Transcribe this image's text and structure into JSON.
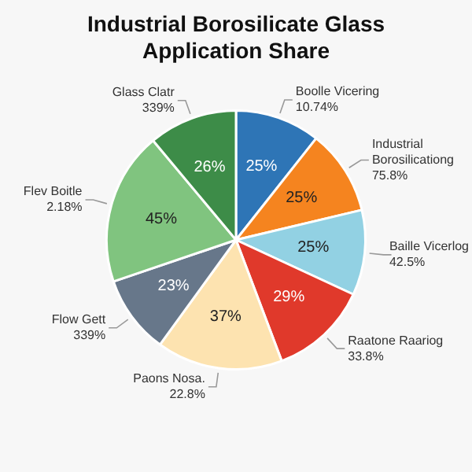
{
  "chart_data": {
    "type": "pie",
    "title": "Industrial Borosilicate Glass Application Share",
    "categories": [
      "Boolle Vicering\n10.74%",
      "Industrial\nBorosilicationg\n75.8%",
      "Baille Vicerlog\n42.5%",
      "Raatone Raariog\n33.8%",
      "Paons Nosa.\n22.8%",
      "Flow Gett\n339%",
      "Flev Boitle\n2.18%",
      "Glass Clatr\n339%"
    ],
    "values": [
      25,
      25,
      25,
      29,
      37,
      23,
      45,
      26
    ],
    "value_labels": [
      "25%",
      "25%",
      "25%",
      "29%",
      "37%",
      "23%",
      "45%",
      "26%"
    ],
    "colors": [
      "#2e75b6",
      "#f5841f",
      "#92d1e3",
      "#e0392b",
      "#fde3b0",
      "#67778a",
      "#80c47f",
      "#3d8c48"
    ],
    "legend": false
  }
}
